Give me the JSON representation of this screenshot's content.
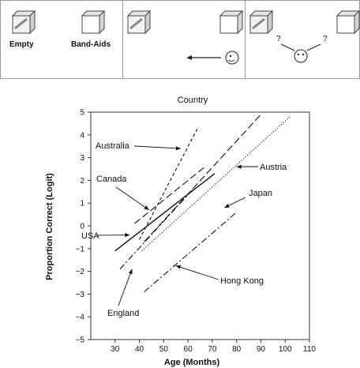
{
  "panels": {
    "panel1": {
      "label_left": "Empty",
      "label_right": "Band-Aids"
    },
    "panel3": {
      "question_left": "?",
      "question_right": "?"
    }
  },
  "chart_data": {
    "type": "line",
    "title": "Country",
    "xlabel": "Age (Months)",
    "ylabel": "Proportion Correct (Logit)",
    "xlim": [
      20,
      110
    ],
    "ylim": [
      -5,
      5
    ],
    "xticks": [
      30,
      40,
      50,
      60,
      70,
      80,
      90,
      100,
      110
    ],
    "yticks": [
      -5,
      -4,
      -3,
      -2,
      -1,
      0,
      1,
      2,
      3,
      4,
      5
    ],
    "grid": false,
    "series": [
      {
        "name": "Australia",
        "style": "short-dash",
        "x": [
          40,
          64
        ],
        "y": [
          -0.6,
          4.3
        ]
      },
      {
        "name": "Canada",
        "style": "long-dash",
        "x": [
          38,
          67
        ],
        "y": [
          0.1,
          2.6
        ]
      },
      {
        "name": "USA",
        "style": "solid",
        "x": [
          30,
          71
        ],
        "y": [
          -1.1,
          2.3
        ]
      },
      {
        "name": "Austria",
        "style": "long-dash",
        "x": [
          42,
          90
        ],
        "y": [
          -0.7,
          4.9
        ]
      },
      {
        "name": "Japan",
        "style": "dotted",
        "x": [
          41,
          102
        ],
        "y": [
          -1.1,
          4.8
        ]
      },
      {
        "name": "England",
        "style": "dash-dot",
        "x": [
          32,
          62
        ],
        "y": [
          -1.9,
          1.6
        ]
      },
      {
        "name": "Hong Kong",
        "style": "dash-dot",
        "x": [
          42,
          80
        ],
        "y": [
          -2.9,
          0.6
        ]
      }
    ],
    "annotations": [
      {
        "text": "Australia",
        "arrow_to": [
          57,
          3.4
        ]
      },
      {
        "text": "Canada",
        "arrow_to": [
          44,
          0.7
        ]
      },
      {
        "text": "USA",
        "arrow_to": [
          36,
          -0.4
        ]
      },
      {
        "text": "Austria",
        "arrow_to": [
          80,
          2.6
        ]
      },
      {
        "text": "Japan",
        "arrow_to": [
          75,
          0.8
        ]
      },
      {
        "text": "England",
        "arrow_to": [
          37,
          -1.9
        ]
      },
      {
        "text": "Hong Kong",
        "arrow_to": [
          55,
          -1.75
        ]
      }
    ]
  }
}
